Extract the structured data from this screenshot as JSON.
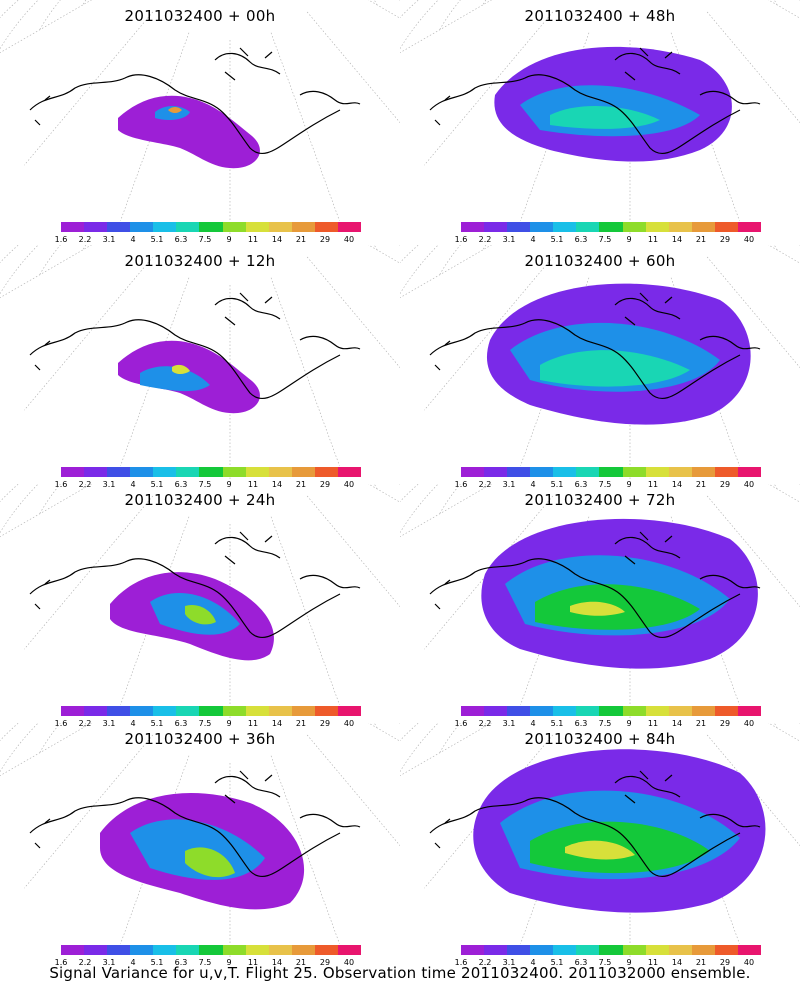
{
  "figure": {
    "caption": "Signal Variance for u,v,T. Flight 25. Observation time 2011032400. 2011032000 ensemble."
  },
  "colorbar": {
    "labels": [
      "1.6",
      "2.2",
      "3.1",
      "4",
      "5.1",
      "6.3",
      "7.5",
      "9",
      "11",
      "14",
      "21",
      "29",
      "40"
    ],
    "colors": [
      "#9d1fd6",
      "#7a2ae8",
      "#3f4fe6",
      "#1e90e8",
      "#19bfe8",
      "#19d6b4",
      "#14c83a",
      "#8edc2a",
      "#d7e03a",
      "#e8c24a",
      "#e79a3a",
      "#ee5a2a",
      "#e8156e"
    ]
  },
  "panels": [
    {
      "title": "2011032400 + 00h",
      "level": 1
    },
    {
      "title": "2011032400 + 48h",
      "level": 5
    },
    {
      "title": "2011032400 + 12h",
      "level": 2
    },
    {
      "title": "2011032400 + 60h",
      "level": 6
    },
    {
      "title": "2011032400 + 24h",
      "level": 3
    },
    {
      "title": "2011032400 + 72h",
      "level": 7
    },
    {
      "title": "2011032400 + 36h",
      "level": 4
    },
    {
      "title": "2011032400 + 84h",
      "level": 8
    }
  ]
}
